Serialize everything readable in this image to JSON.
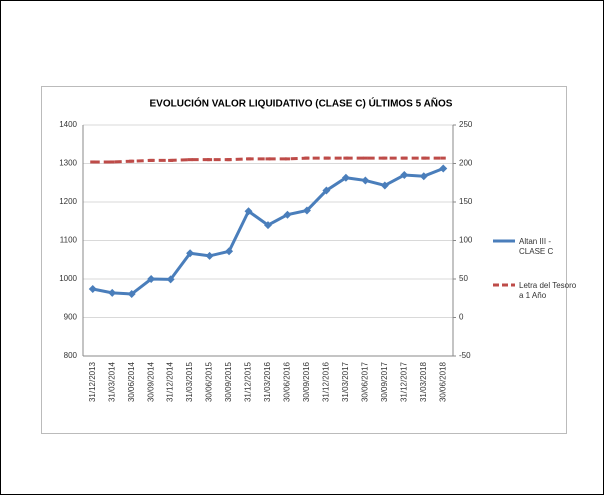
{
  "chart_data": {
    "type": "line",
    "title": "EVOLUCIÓN VALOR LIQUIDATIVO (CLASE C) ÚLTIMOS 5 AÑOS",
    "categories": [
      "31/12/2013",
      "31/03/2014",
      "30/06/2014",
      "30/09/2014",
      "31/12/2014",
      "31/03/2015",
      "30/06/2015",
      "30/09/2015",
      "31/12/2015",
      "31/03/2016",
      "30/06/2016",
      "30/09/2016",
      "31/12/2016",
      "31/03/2017",
      "30/06/2017",
      "30/09/2017",
      "31/12/2017",
      "31/03/2018",
      "30/06/2018"
    ],
    "series": [
      {
        "name": "Altan III - CLASE C",
        "color": "#4a7ebb",
        "values": [
          974,
          964,
          961,
          1000,
          999,
          1067,
          1060,
          1072,
          1176,
          1140,
          1167,
          1178,
          1230,
          1263,
          1256,
          1243,
          1270,
          1267,
          1287
        ]
      },
      {
        "name": "Letra del Tesoro a 1 Año",
        "color": "#be4b48",
        "axis": "y2",
        "dashed": true,
        "values": [
          202,
          202,
          203,
          204,
          204,
          205,
          205,
          205,
          206,
          206,
          206,
          207,
          207,
          207,
          207,
          207,
          207,
          207,
          207
        ]
      }
    ],
    "ylim": [
      800,
      1400
    ],
    "yticks": [
      800,
      900,
      1000,
      1100,
      1200,
      1300,
      1400
    ],
    "y2lim": [
      -50,
      250
    ],
    "y2ticks": [
      -50,
      0,
      50,
      100,
      150,
      200,
      250
    ],
    "grid": true,
    "legend": "right"
  }
}
